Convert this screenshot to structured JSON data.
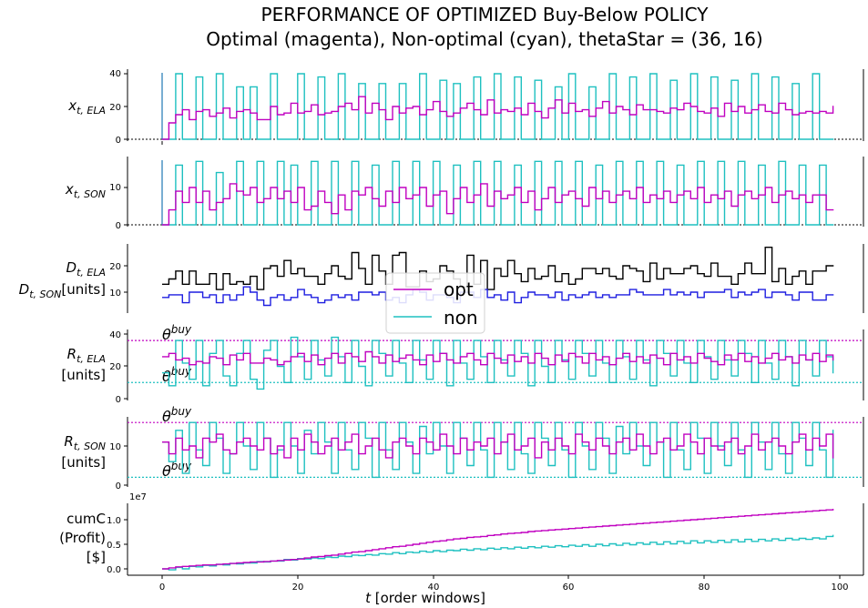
{
  "title": {
    "line1": "PERFORMANCE OF OPTIMIZED Buy-Below POLICY",
    "line2": "Optimal (magenta), Non-optimal (cyan), thetaStar = (36, 16)"
  },
  "colors": {
    "opt": "#c000c0",
    "non": "#1ec0c0",
    "demand_ela": "#000000",
    "demand_son": "#1f1fe0",
    "axis": "#000000"
  },
  "legend": {
    "opt": "opt",
    "non": "non"
  },
  "xaxis": {
    "label_italic": "t",
    "label_rest": " [order windows]",
    "ticks": [
      "0",
      "20",
      "40",
      "60",
      "80",
      "100"
    ]
  },
  "panels": {
    "x_ela": {
      "label": "x",
      "sub": "t, ELA",
      "ticks": [
        "0",
        "20",
        "40"
      ]
    },
    "x_son": {
      "label": "x",
      "sub": "t, SON",
      "ticks": [
        "0",
        "10"
      ]
    },
    "demand": {
      "label1": "D",
      "sub1": "t, ELA",
      "label2": "D",
      "sub2": "t, SON",
      "units": "[units]",
      "ticks": [
        "10",
        "20"
      ]
    },
    "r_ela": {
      "label": "R",
      "sub": "t, ELA",
      "units": "[units]",
      "ticks": [
        "0",
        "20",
        "40"
      ],
      "theta": "θ",
      "theta_sup": "buy"
    },
    "r_son": {
      "label": "R",
      "sub": "t, SON",
      "units": "[units]",
      "ticks": [
        "0",
        "10"
      ],
      "theta": "θ",
      "theta_sup": "buy"
    },
    "profit": {
      "line1": "cumC",
      "line2": "(Profit)",
      "line3": "[$]",
      "ticks": [
        "0.0",
        "0.5",
        "1.0"
      ],
      "exponent": "1e7"
    }
  },
  "chart_data": {
    "type": "line",
    "x": {
      "start": 0,
      "end": 99,
      "xlim": [
        -5,
        103
      ]
    },
    "x_ela": {
      "ylim": [
        -1,
        42
      ],
      "opt": [
        0,
        10,
        15,
        18,
        12,
        17,
        18,
        14,
        16,
        19,
        13,
        17,
        18,
        16,
        12,
        12,
        20,
        15,
        16,
        22,
        16,
        17,
        21,
        15,
        16,
        17,
        20,
        22,
        18,
        26,
        16,
        22,
        18,
        12,
        20,
        16,
        19,
        20,
        15,
        18,
        23,
        17,
        14,
        16,
        19,
        22,
        18,
        15,
        24,
        16,
        18,
        17,
        19,
        15,
        22,
        17,
        13,
        19,
        24,
        16,
        22,
        17,
        18,
        14,
        19,
        23,
        16,
        20,
        18,
        15,
        21,
        18,
        18,
        17,
        16,
        19,
        18,
        22,
        20,
        17,
        16,
        19,
        14,
        22,
        17,
        20,
        16,
        18,
        21,
        17,
        16,
        22,
        18,
        15,
        16,
        17,
        16,
        17,
        16,
        20
      ],
      "non": [
        0,
        0,
        40,
        0,
        0,
        38,
        0,
        0,
        40,
        0,
        0,
        32,
        0,
        32,
        0,
        0,
        40,
        0,
        0,
        0,
        40,
        0,
        0,
        38,
        0,
        0,
        40,
        0,
        0,
        34,
        0,
        0,
        34,
        0,
        0,
        34,
        0,
        0,
        40,
        0,
        0,
        36,
        0,
        34,
        0,
        0,
        38,
        0,
        0,
        40,
        0,
        0,
        38,
        0,
        0,
        36,
        0,
        0,
        32,
        0,
        40,
        0,
        0,
        32,
        0,
        0,
        40,
        0,
        0,
        38,
        0,
        0,
        40,
        0,
        0,
        36,
        0,
        0,
        40,
        0,
        0,
        38,
        0,
        0,
        36,
        0,
        0,
        40,
        0,
        0,
        38,
        0,
        0,
        34,
        0,
        0,
        40,
        0,
        0,
        0
      ]
    },
    "x_son": {
      "ylim": [
        -0.5,
        18
      ],
      "opt": [
        0,
        4,
        9,
        6,
        10,
        6,
        9,
        4,
        6,
        7,
        11,
        9,
        8,
        10,
        6,
        7,
        10,
        7,
        9,
        6,
        10,
        4,
        5,
        9,
        6,
        3,
        8,
        4,
        9,
        8,
        10,
        7,
        5,
        9,
        6,
        10,
        7,
        8,
        10,
        5,
        8,
        9,
        3,
        7,
        10,
        6,
        8,
        11,
        5,
        9,
        7,
        8,
        10,
        6,
        9,
        4,
        7,
        10,
        6,
        8,
        9,
        7,
        5,
        10,
        7,
        9,
        6,
        8,
        9,
        7,
        10,
        6,
        8,
        7,
        9,
        6,
        8,
        9,
        7,
        10,
        6,
        8,
        7,
        9,
        5,
        8,
        9,
        7,
        8,
        10,
        6,
        8,
        9,
        7,
        8,
        6,
        8,
        8,
        4,
        4
      ],
      "non": [
        0,
        0,
        16,
        0,
        0,
        17,
        0,
        0,
        14,
        0,
        0,
        17,
        0,
        0,
        17,
        0,
        0,
        17,
        0,
        16,
        0,
        0,
        17,
        0,
        0,
        17,
        0,
        0,
        17,
        0,
        0,
        16,
        0,
        0,
        17,
        0,
        0,
        17,
        0,
        0,
        17,
        0,
        0,
        16,
        0,
        0,
        17,
        0,
        0,
        17,
        0,
        0,
        16,
        0,
        0,
        17,
        0,
        0,
        17,
        0,
        0,
        17,
        0,
        0,
        16,
        0,
        0,
        17,
        0,
        0,
        17,
        0,
        0,
        17,
        0,
        0,
        16,
        0,
        0,
        17,
        0,
        0,
        17,
        0,
        0,
        17,
        0,
        0,
        16,
        0,
        0,
        17,
        0,
        0,
        16,
        0,
        0,
        16,
        0,
        0
      ]
    },
    "demand": {
      "ylim": [
        3,
        28
      ],
      "ela": [
        13,
        15,
        18,
        13,
        18,
        13,
        13,
        17,
        11,
        17,
        13,
        14,
        13,
        16,
        11,
        19,
        20,
        16,
        22,
        17,
        19,
        16,
        16,
        13,
        17,
        20,
        16,
        15,
        25,
        19,
        13,
        24,
        18,
        13,
        24,
        25,
        12,
        12,
        18,
        14,
        15,
        20,
        18,
        15,
        12,
        24,
        13,
        22,
        11,
        19,
        16,
        22,
        17,
        14,
        19,
        15,
        16,
        20,
        14,
        17,
        13,
        15,
        19,
        19,
        17,
        19,
        16,
        15,
        20,
        19,
        18,
        14,
        21,
        15,
        19,
        17,
        17,
        19,
        20,
        17,
        16,
        21,
        16,
        16,
        13,
        17,
        21,
        17,
        17,
        27,
        14,
        19,
        13,
        16,
        18,
        13,
        18,
        18,
        20,
        20
      ],
      "son": [
        8,
        9,
        9,
        6,
        10,
        10,
        8,
        9,
        6,
        9,
        7,
        9,
        12,
        10,
        7,
        5,
        8,
        9,
        7,
        8,
        11,
        9,
        8,
        6,
        7,
        9,
        8,
        9,
        7,
        10,
        10,
        9,
        10,
        7,
        8,
        6,
        9,
        11,
        10,
        7,
        9,
        9,
        8,
        6,
        10,
        10,
        8,
        11,
        8,
        9,
        7,
        10,
        6,
        8,
        10,
        9,
        9,
        8,
        10,
        7,
        9,
        8,
        9,
        10,
        8,
        9,
        8,
        9,
        9,
        11,
        10,
        9,
        9,
        9,
        11,
        9,
        10,
        9,
        10,
        8,
        10,
        10,
        10,
        11,
        8,
        10,
        9,
        10,
        11,
        8,
        10,
        10,
        9,
        7,
        10,
        10,
        7,
        7,
        9,
        9
      ]
    },
    "r_ela": {
      "ylim": [
        -1,
        42
      ],
      "theta_opt": 36,
      "theta_non": 10,
      "opt": [
        26,
        28,
        24,
        25,
        21,
        23,
        22,
        26,
        25,
        21,
        27,
        24,
        28,
        22,
        22,
        25,
        24,
        21,
        23,
        26,
        28,
        23,
        27,
        21,
        25,
        28,
        22,
        28,
        26,
        23,
        29,
        26,
        22,
        27,
        23,
        25,
        27,
        24,
        21,
        27,
        23,
        28,
        24,
        22,
        26,
        28,
        24,
        21,
        28,
        25,
        22,
        27,
        23,
        26,
        22,
        28,
        25,
        21,
        27,
        23,
        28,
        26,
        22,
        28,
        24,
        26,
        21,
        25,
        28,
        23,
        26,
        22,
        27,
        25,
        21,
        28,
        24,
        26,
        22,
        28,
        25,
        23,
        21,
        27,
        24,
        28,
        23,
        26,
        22,
        25,
        28,
        24,
        26,
        22,
        27,
        24,
        28,
        23,
        27,
        24
      ],
      "non": [
        16,
        8,
        36,
        22,
        12,
        36,
        8,
        28,
        36,
        14,
        8,
        28,
        36,
        12,
        6,
        30,
        36,
        20,
        10,
        38,
        26,
        12,
        36,
        24,
        14,
        38,
        26,
        10,
        36,
        20,
        8,
        36,
        28,
        14,
        36,
        22,
        10,
        36,
        24,
        12,
        36,
        28,
        8,
        36,
        22,
        12,
        36,
        26,
        10,
        36,
        24,
        14,
        36,
        28,
        8,
        36,
        20,
        10,
        36,
        24,
        12,
        36,
        28,
        14,
        36,
        22,
        10,
        36,
        26,
        12,
        36,
        24,
        8,
        36,
        28,
        14,
        36,
        22,
        10,
        36,
        26,
        12,
        36,
        24,
        14,
        36,
        28,
        10,
        36,
        22,
        12,
        36,
        26,
        8,
        36,
        24,
        14,
        36,
        26,
        16
      ]
    },
    "r_son": {
      "ylim": [
        -1,
        17.5
      ],
      "theta_opt": 16,
      "theta_non": 2,
      "opt": [
        11,
        8,
        12,
        9,
        10,
        7,
        12,
        11,
        13,
        9,
        8,
        11,
        12,
        10,
        9,
        12,
        8,
        10,
        7,
        12,
        9,
        13,
        11,
        8,
        10,
        12,
        9,
        11,
        13,
        8,
        10,
        12,
        9,
        7,
        11,
        12,
        10,
        8,
        12,
        11,
        9,
        13,
        10,
        8,
        12,
        9,
        11,
        10,
        12,
        8,
        11,
        13,
        9,
        10,
        12,
        7,
        11,
        9,
        12,
        10,
        8,
        13,
        11,
        9,
        12,
        10,
        8,
        11,
        12,
        9,
        13,
        10,
        8,
        11,
        12,
        9,
        10,
        13,
        11,
        8,
        12,
        10,
        9,
        11,
        12,
        8,
        10,
        13,
        9,
        11,
        12,
        10,
        8,
        11,
        13,
        9,
        12,
        10,
        13,
        7
      ],
      "non": [
        11,
        6,
        14,
        3,
        16,
        9,
        5,
        16,
        12,
        3,
        8,
        16,
        10,
        4,
        16,
        12,
        2,
        9,
        16,
        10,
        3,
        14,
        8,
        16,
        11,
        3,
        16,
        9,
        4,
        16,
        12,
        2,
        16,
        9,
        4,
        16,
        11,
        3,
        15,
        8,
        16,
        10,
        3,
        16,
        12,
        5,
        16,
        9,
        2,
        16,
        11,
        4,
        16,
        8,
        3,
        16,
        12,
        5,
        16,
        9,
        2,
        16,
        10,
        4,
        16,
        12,
        3,
        15,
        8,
        16,
        10,
        5,
        16,
        11,
        2,
        16,
        9,
        4,
        16,
        12,
        3,
        16,
        10,
        5,
        16,
        9,
        2,
        16,
        11,
        4,
        16,
        8,
        3,
        16,
        12,
        5,
        16,
        9,
        2,
        14
      ]
    },
    "profit": {
      "ylim": [
        -0.1,
        1.35
      ],
      "opt": [
        0.0,
        0.02,
        0.04,
        0.05,
        0.06,
        0.07,
        0.08,
        0.08,
        0.09,
        0.1,
        0.11,
        0.12,
        0.13,
        0.14,
        0.14,
        0.15,
        0.16,
        0.17,
        0.18,
        0.19,
        0.2,
        0.22,
        0.24,
        0.25,
        0.27,
        0.28,
        0.3,
        0.32,
        0.34,
        0.35,
        0.37,
        0.39,
        0.41,
        0.43,
        0.45,
        0.46,
        0.48,
        0.5,
        0.52,
        0.54,
        0.56,
        0.57,
        0.59,
        0.61,
        0.62,
        0.64,
        0.65,
        0.66,
        0.68,
        0.69,
        0.71,
        0.72,
        0.73,
        0.74,
        0.76,
        0.77,
        0.78,
        0.79,
        0.8,
        0.81,
        0.82,
        0.83,
        0.84,
        0.85,
        0.86,
        0.87,
        0.88,
        0.89,
        0.9,
        0.91,
        0.92,
        0.93,
        0.94,
        0.95,
        0.96,
        0.97,
        0.98,
        0.99,
        1.0,
        1.01,
        1.02,
        1.03,
        1.04,
        1.05,
        1.06,
        1.07,
        1.08,
        1.09,
        1.1,
        1.11,
        1.12,
        1.13,
        1.14,
        1.15,
        1.16,
        1.17,
        1.18,
        1.19,
        1.2,
        1.21
      ],
      "non": [
        0.0,
        -0.02,
        0.03,
        0.0,
        0.05,
        0.04,
        0.07,
        0.06,
        0.09,
        0.08,
        0.11,
        0.1,
        0.12,
        0.12,
        0.15,
        0.14,
        0.16,
        0.16,
        0.19,
        0.18,
        0.21,
        0.2,
        0.22,
        0.21,
        0.24,
        0.23,
        0.26,
        0.25,
        0.28,
        0.27,
        0.29,
        0.28,
        0.31,
        0.3,
        0.33,
        0.31,
        0.34,
        0.33,
        0.36,
        0.34,
        0.37,
        0.35,
        0.38,
        0.37,
        0.4,
        0.38,
        0.41,
        0.39,
        0.42,
        0.4,
        0.43,
        0.41,
        0.44,
        0.42,
        0.45,
        0.43,
        0.46,
        0.44,
        0.47,
        0.45,
        0.48,
        0.46,
        0.49,
        0.46,
        0.5,
        0.47,
        0.51,
        0.48,
        0.52,
        0.49,
        0.53,
        0.5,
        0.54,
        0.5,
        0.55,
        0.51,
        0.56,
        0.52,
        0.57,
        0.53,
        0.57,
        0.54,
        0.58,
        0.54,
        0.59,
        0.55,
        0.6,
        0.56,
        0.6,
        0.57,
        0.61,
        0.58,
        0.62,
        0.59,
        0.62,
        0.6,
        0.63,
        0.61,
        0.66,
        0.68
      ]
    }
  }
}
